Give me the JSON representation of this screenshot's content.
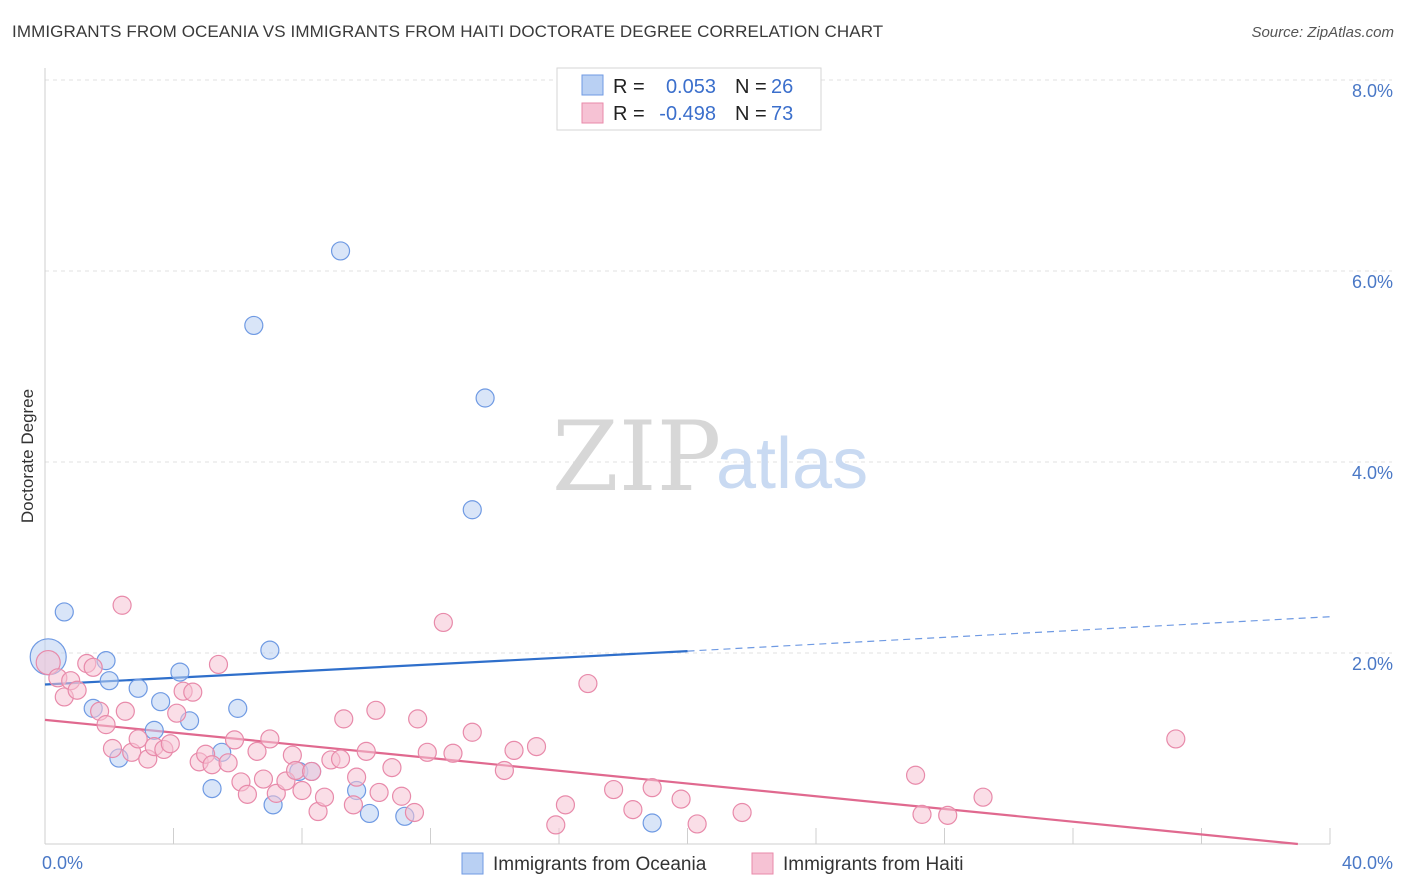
{
  "title": "IMMIGRANTS FROM OCEANIA VS IMMIGRANTS FROM HAITI DOCTORATE DEGREE CORRELATION CHART",
  "source": "Source: ZipAtlas.com",
  "watermark": {
    "zip": "ZIP",
    "atlas": "atlas"
  },
  "chart_data": {
    "type": "scatter",
    "ylabel": "Doctorate Degree",
    "xlim": [
      0,
      40
    ],
    "ylim": [
      0,
      8
    ],
    "x_tick_labels": {
      "min": "0.0%",
      "max": "40.0%"
    },
    "y_ticks": [
      {
        "value": 2,
        "label": "2.0%"
      },
      {
        "value": 4,
        "label": "4.0%"
      },
      {
        "value": 6,
        "label": "6.0%"
      },
      {
        "value": 8,
        "label": "8.0%"
      }
    ],
    "grid": true,
    "legend_position": "top-center",
    "series": [
      {
        "name": "Immigrants from Oceania",
        "r_label": "R =",
        "r_value": "0.053",
        "n_label": "N =",
        "n_value": "26",
        "color": "#6f9ae3",
        "fill": "#b9d0f3",
        "trend": {
          "x0": 0,
          "y0": 1.67,
          "x1": 20,
          "y1": 2.02,
          "dash_to_x": 40,
          "dash_to_y": 2.38
        },
        "points": [
          [
            0.1,
            1.96,
            18
          ],
          [
            0.6,
            2.43,
            9
          ],
          [
            1.9,
            1.92,
            9
          ],
          [
            2.0,
            1.71,
            9
          ],
          [
            1.5,
            1.42,
            9
          ],
          [
            2.3,
            0.9,
            9
          ],
          [
            2.9,
            1.63,
            9
          ],
          [
            3.4,
            1.19,
            9
          ],
          [
            3.6,
            1.49,
            9
          ],
          [
            4.2,
            1.8,
            9
          ],
          [
            4.5,
            1.29,
            9
          ],
          [
            5.2,
            0.58,
            9
          ],
          [
            5.5,
            0.96,
            9
          ],
          [
            6.0,
            1.42,
            9
          ],
          [
            6.5,
            5.43,
            9
          ],
          [
            7.0,
            2.03,
            9
          ],
          [
            7.1,
            0.41,
            9
          ],
          [
            7.9,
            0.76,
            9
          ],
          [
            8.3,
            0.76,
            9
          ],
          [
            9.2,
            6.21,
            9
          ],
          [
            9.7,
            0.56,
            9
          ],
          [
            10.1,
            0.32,
            9
          ],
          [
            11.2,
            0.29,
            9
          ],
          [
            13.3,
            3.5,
            9
          ],
          [
            13.7,
            4.67,
            9
          ],
          [
            18.9,
            0.22,
            9
          ]
        ]
      },
      {
        "name": "Immigrants from Haiti",
        "r_label": "R =",
        "r_value": "-0.498",
        "n_label": "N =",
        "n_value": "73",
        "color": "#e88aaa",
        "fill": "#f6c2d4",
        "trend": {
          "x0": 0,
          "y0": 1.3,
          "x1": 39,
          "y1": 0.0
        },
        "points": [
          [
            0.1,
            1.9,
            12
          ],
          [
            0.4,
            1.74,
            9
          ],
          [
            0.6,
            1.54,
            9
          ],
          [
            0.8,
            1.71,
            9
          ],
          [
            1.0,
            1.61,
            9
          ],
          [
            1.3,
            1.89,
            9
          ],
          [
            1.5,
            1.85,
            9
          ],
          [
            1.7,
            1.39,
            9
          ],
          [
            1.9,
            1.25,
            9
          ],
          [
            2.1,
            1.0,
            9
          ],
          [
            2.4,
            2.5,
            9
          ],
          [
            2.5,
            1.39,
            9
          ],
          [
            2.7,
            0.96,
            9
          ],
          [
            2.9,
            1.1,
            9
          ],
          [
            3.2,
            0.89,
            9
          ],
          [
            3.4,
            1.02,
            9
          ],
          [
            3.7,
            0.99,
            9
          ],
          [
            3.9,
            1.05,
            9
          ],
          [
            4.1,
            1.37,
            9
          ],
          [
            4.3,
            1.6,
            9
          ],
          [
            4.6,
            1.59,
            9
          ],
          [
            4.8,
            0.86,
            9
          ],
          [
            5.0,
            0.94,
            9
          ],
          [
            5.2,
            0.83,
            9
          ],
          [
            5.4,
            1.88,
            9
          ],
          [
            5.7,
            0.85,
            9
          ],
          [
            5.9,
            1.09,
            9
          ],
          [
            6.1,
            0.65,
            9
          ],
          [
            6.3,
            0.52,
            9
          ],
          [
            6.6,
            0.97,
            9
          ],
          [
            6.8,
            0.68,
            9
          ],
          [
            7.0,
            1.1,
            9
          ],
          [
            7.2,
            0.53,
            9
          ],
          [
            7.5,
            0.66,
            9
          ],
          [
            7.7,
            0.93,
            9
          ],
          [
            7.8,
            0.77,
            9
          ],
          [
            8.0,
            0.56,
            9
          ],
          [
            8.3,
            0.76,
            9
          ],
          [
            8.5,
            0.34,
            9
          ],
          [
            8.7,
            0.49,
            9
          ],
          [
            8.9,
            0.88,
            9
          ],
          [
            9.2,
            0.89,
            9
          ],
          [
            9.3,
            1.31,
            9
          ],
          [
            9.6,
            0.41,
            9
          ],
          [
            9.7,
            0.7,
            9
          ],
          [
            10.0,
            0.97,
            9
          ],
          [
            10.3,
            1.4,
            9
          ],
          [
            10.4,
            0.54,
            9
          ],
          [
            10.8,
            0.8,
            9
          ],
          [
            11.1,
            0.5,
            9
          ],
          [
            11.5,
            0.33,
            9
          ],
          [
            11.6,
            1.31,
            9
          ],
          [
            11.9,
            0.96,
            9
          ],
          [
            12.4,
            2.32,
            9
          ],
          [
            12.7,
            0.95,
            9
          ],
          [
            13.3,
            1.17,
            9
          ],
          [
            14.3,
            0.77,
            9
          ],
          [
            14.6,
            0.98,
            9
          ],
          [
            15.3,
            1.02,
            9
          ],
          [
            15.9,
            0.2,
            9
          ],
          [
            16.2,
            0.41,
            9
          ],
          [
            16.9,
            1.68,
            9
          ],
          [
            17.7,
            0.57,
            9
          ],
          [
            18.3,
            0.36,
            9
          ],
          [
            18.9,
            0.59,
            9
          ],
          [
            19.8,
            0.47,
            9
          ],
          [
            20.3,
            0.21,
            9
          ],
          [
            21.7,
            0.33,
            9
          ],
          [
            27.1,
            0.72,
            9
          ],
          [
            27.3,
            0.31,
            9
          ],
          [
            28.1,
            0.3,
            9
          ],
          [
            29.2,
            0.49,
            9
          ],
          [
            35.2,
            1.1,
            9
          ]
        ]
      }
    ]
  }
}
